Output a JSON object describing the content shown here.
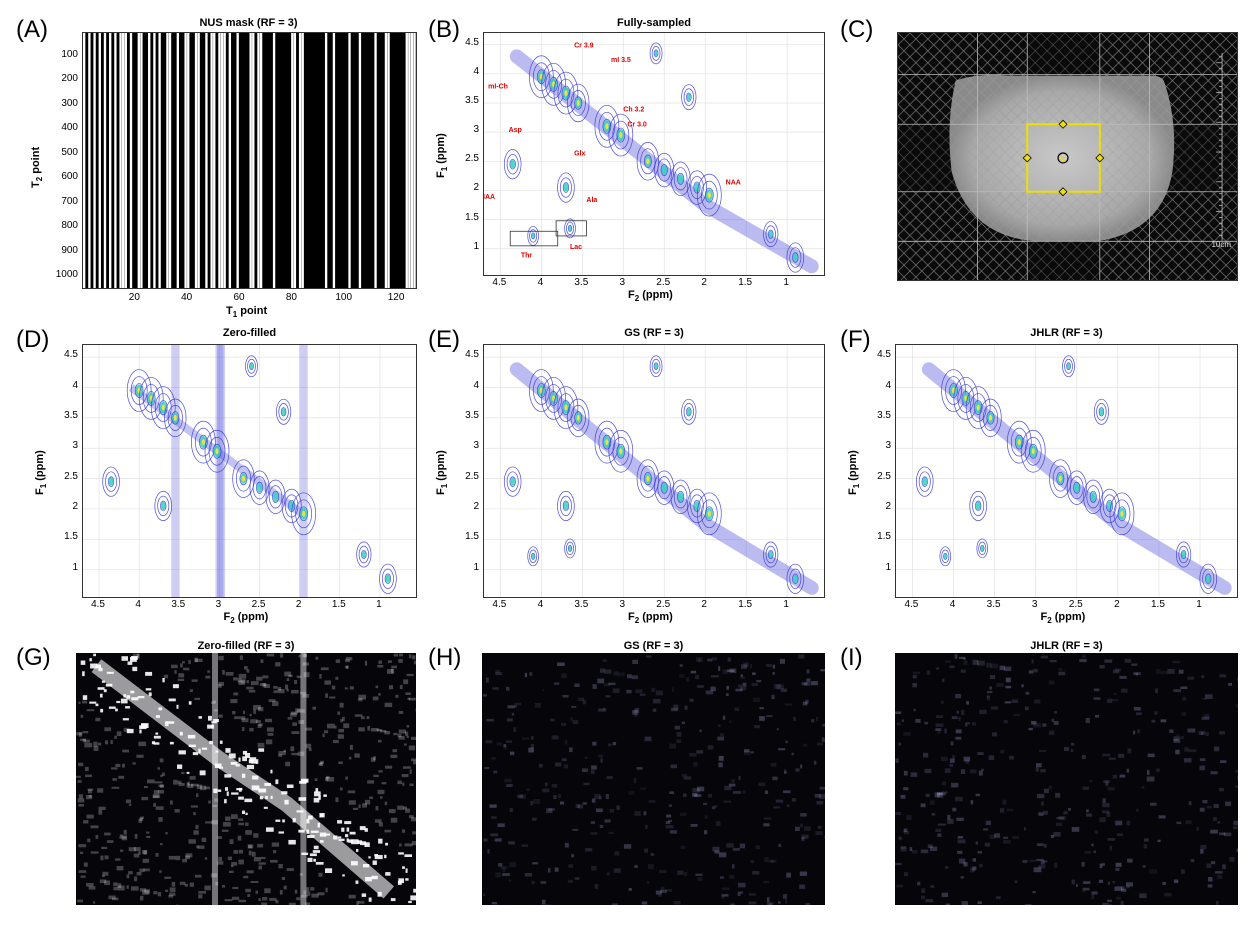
{
  "panels": {
    "A": {
      "letter": "(A)",
      "title": "NUS mask (RF = 3)",
      "xlabel": "T",
      "xlabel_sub": "1",
      "xlabel_tail": " point",
      "ylabel": "T",
      "ylabel_sub": "2",
      "ylabel_tail": " point",
      "xticks": [
        "20",
        "40",
        "60",
        "80",
        "100",
        "120"
      ],
      "yticks": [
        "100",
        "200",
        "300",
        "400",
        "500",
        "600",
        "700",
        "800",
        "900",
        "1000"
      ]
    },
    "B": {
      "letter": "(B)",
      "title": "Fully-sampled"
    },
    "C": {
      "letter": "(C)",
      "scale_label": "10cm"
    },
    "D": {
      "letter": "(D)",
      "title": "Zero-filled"
    },
    "E": {
      "letter": "(E)",
      "title": "GS (RF = 3)"
    },
    "F": {
      "letter": "(F)",
      "title": "JHLR (RF = 3)"
    },
    "G": {
      "letter": "(G)",
      "title": "Zero-filled (RF = 3)"
    },
    "H": {
      "letter": "(H)",
      "title": "GS (RF = 3)"
    },
    "I": {
      "letter": "(I)",
      "title": "JHLR (RF = 3)"
    }
  },
  "spectrum_axes": {
    "xlabel": "F",
    "xlabel_sub": "2",
    "xlabel_tail": " (ppm)",
    "ylabel": "F",
    "ylabel_sub": "1",
    "ylabel_tail": " (ppm)",
    "xticks": [
      "4.5",
      "4",
      "3.5",
      "3",
      "2.5",
      "2",
      "1.5",
      "1"
    ],
    "yticks": [
      "4.5",
      "4",
      "3.5",
      "3",
      "2.5",
      "2",
      "1.5",
      "1"
    ]
  },
  "annotations": [
    "Cr 3.9",
    "mI 3.5",
    "mI-Ch",
    "Ch 3.2",
    "Cr 3.0",
    "Asp",
    "Glx",
    "NAA",
    "NAA",
    "Ala",
    "Thr",
    "Lac"
  ],
  "colors": {
    "contour": "#3b3bd6",
    "peak_core": "#f0e040",
    "peak_mid": "#30d0c0",
    "annotation": "#e00000",
    "voxel": "#f0e000"
  }
}
